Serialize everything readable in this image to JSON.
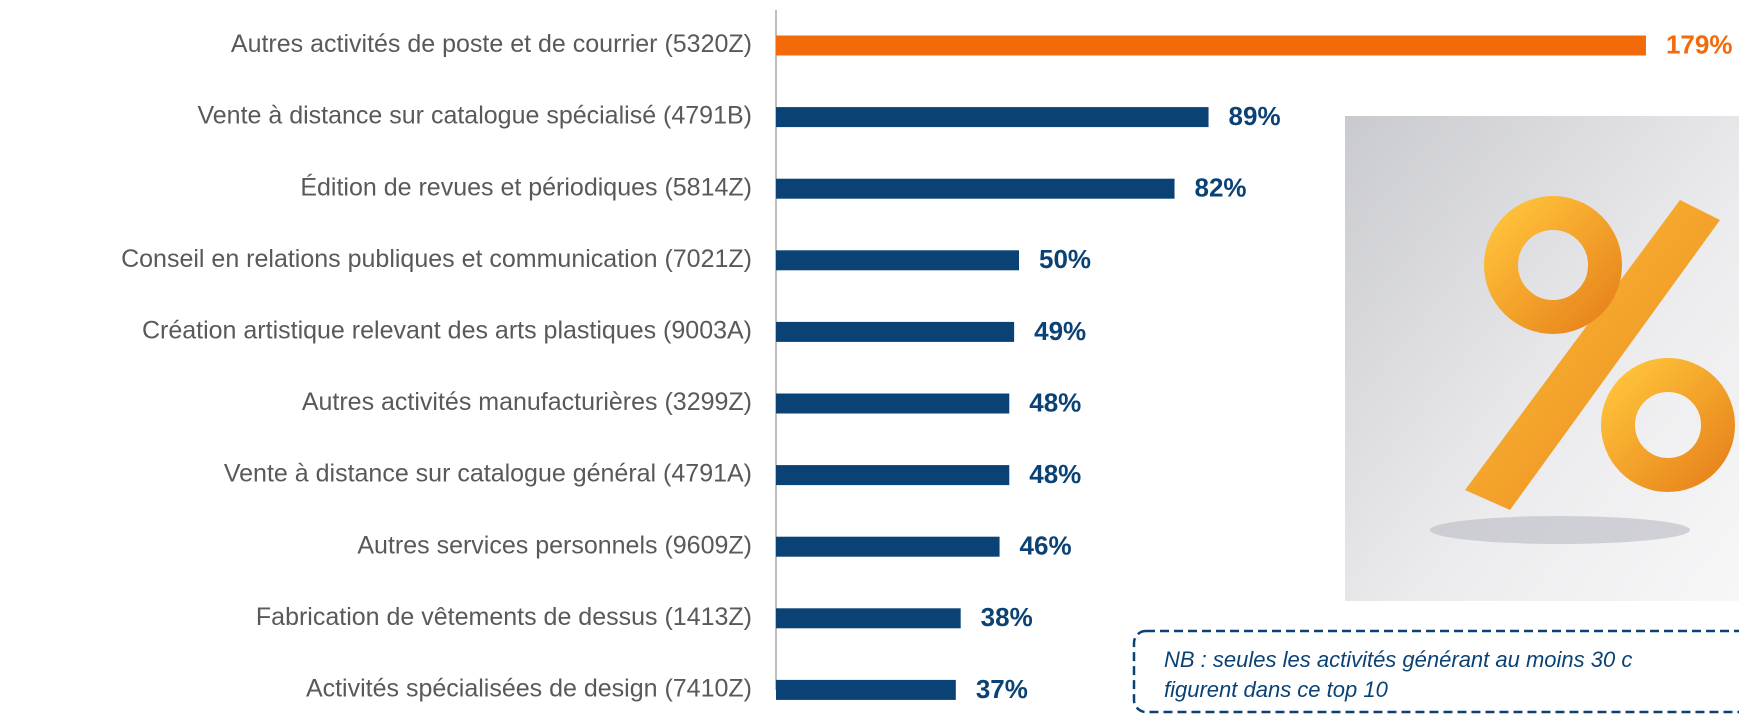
{
  "chart_data": {
    "type": "bar",
    "orientation": "horizontal",
    "categories": [
      "Autres activités de poste et de courrier (5320Z)",
      "Vente à distance sur catalogue spécialisé (4791B)",
      "Édition de revues et périodiques (5814Z)",
      "Conseil en relations publiques et communication (7021Z)",
      "Création artistique relevant des arts plastiques (9003A)",
      "Autres activités manufacturières (3299Z)",
      "Vente à distance sur catalogue général (4791A)",
      "Autres services personnels (9609Z)",
      "Fabrication de vêtements de dessus (1413Z)",
      "Activités spécialisées de design (7410Z)"
    ],
    "values": [
      179,
      89,
      82,
      50,
      49,
      48,
      48,
      46,
      38,
      37
    ],
    "value_labels": [
      "179%",
      "89%",
      "82%",
      "50%",
      "49%",
      "48%",
      "48%",
      "46%",
      "38%",
      "37%"
    ],
    "colors": [
      "#f26a0a",
      "#0b4275",
      "#0b4275",
      "#0b4275",
      "#0b4275",
      "#0b4275",
      "#0b4275",
      "#0b4275",
      "#0b4275",
      "#0b4275"
    ],
    "note": [
      "NB :  seules les activités générant au moins 30 c",
      "figurent dans ce top 10"
    ]
  }
}
